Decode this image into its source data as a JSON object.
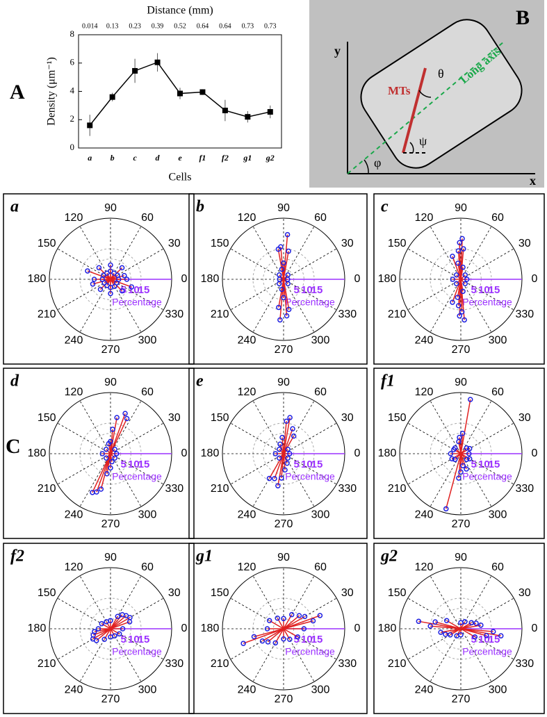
{
  "panel_labels": [
    "A",
    "B",
    "C"
  ],
  "diagram": {
    "x_axis": "x",
    "y_axis": "y",
    "mts": "MTs",
    "long_axis": "Long axis",
    "theta": "θ",
    "psi": "ψ",
    "phi": "φ"
  },
  "chart_data": [
    {
      "type": "line",
      "x_label": "Cells",
      "x2_label": "Distance (mm)",
      "y_label": "Density (μm⁻¹)",
      "categories": [
        "a",
        "b",
        "c",
        "d",
        "e",
        "f1",
        "f2",
        "g1",
        "g2"
      ],
      "x2_labels": [
        "0.014",
        "0.13",
        "0.23",
        "0.39",
        "0.52",
        "0.64",
        "0.64",
        "0.73",
        "0.73"
      ],
      "values": [
        1.6,
        3.6,
        5.45,
        6.05,
        3.85,
        3.95,
        2.65,
        2.2,
        2.55
      ],
      "errors": [
        0.75,
        0.3,
        0.85,
        0.65,
        0.4,
        0.2,
        0.75,
        0.4,
        0.45
      ],
      "color": "#000000",
      "ylim": [
        0,
        8
      ],
      "yticks": [
        0,
        2,
        4,
        6,
        8
      ]
    },
    {
      "type": "polar",
      "title": "a",
      "theta_ticks": [
        0,
        30,
        60,
        90,
        120,
        150,
        180,
        210,
        240,
        270,
        300,
        330
      ],
      "rlim": [
        0,
        30
      ],
      "rticks": [
        5,
        10,
        15
      ],
      "r_label": "Percentage",
      "color": "#1f1fe0",
      "line_color": "#e02020",
      "theta": [
        0,
        30,
        60,
        90,
        120,
        150,
        180,
        210,
        240,
        270,
        300,
        330,
        15,
        160,
        195,
        340,
        45,
        135,
        225,
        315,
        90,
        270,
        180,
        0
      ],
      "r": [
        4,
        4,
        3.5,
        4,
        3.5,
        4,
        4,
        3.5,
        3.5,
        4,
        4,
        3.5,
        7,
        12,
        9,
        11,
        8,
        8,
        7,
        8,
        7,
        7,
        8,
        8
      ]
    },
    {
      "type": "polar",
      "title": "b",
      "theta_ticks": [
        0,
        30,
        60,
        90,
        120,
        150,
        180,
        210,
        240,
        270,
        300,
        330
      ],
      "rlim": [
        0,
        30
      ],
      "rticks": [
        5,
        10,
        15
      ],
      "r_label": "Percentage",
      "color": "#1f1fe0",
      "line_color": "#e02020",
      "theta": [
        95,
        100,
        85,
        80,
        265,
        275,
        260,
        280,
        90,
        270,
        100,
        260,
        45,
        135,
        225,
        315,
        0,
        180
      ],
      "r": [
        16,
        15,
        22,
        14,
        20,
        18,
        14,
        15,
        8,
        9,
        5,
        5,
        3,
        3,
        3,
        3,
        2,
        2
      ]
    },
    {
      "type": "polar",
      "title": "c",
      "theta_ticks": [
        0,
        30,
        60,
        90,
        120,
        150,
        180,
        210,
        240,
        270,
        300,
        330
      ],
      "rlim": [
        0,
        30
      ],
      "rticks": [
        5,
        10,
        15
      ],
      "r_label": "Percentage",
      "color": "#1f1fe0",
      "line_color": "#e02020",
      "theta": [
        88,
        92,
        85,
        95,
        268,
        272,
        275,
        265,
        100,
        260,
        80,
        280,
        45,
        135,
        225,
        315,
        180,
        0,
        110,
        250
      ],
      "r": [
        20,
        18,
        15,
        14,
        18,
        16,
        20,
        13,
        8,
        9,
        6,
        6,
        3,
        3,
        3,
        3,
        4,
        3,
        12,
        12
      ]
    },
    {
      "type": "polar",
      "title": "d",
      "theta_ticks": [
        0,
        30,
        60,
        90,
        120,
        150,
        180,
        210,
        240,
        270,
        300,
        330
      ],
      "rlim": [
        0,
        30
      ],
      "rticks": [
        5,
        10,
        15
      ],
      "r_label": "Percentage",
      "color": "#1f1fe0",
      "line_color": "#e02020",
      "theta": [
        70,
        65,
        80,
        85,
        250,
        245,
        255,
        260,
        90,
        270,
        100,
        280,
        45,
        135,
        225,
        315,
        180,
        0
      ],
      "r": [
        21,
        19,
        18,
        12,
        20,
        21,
        18,
        10,
        6,
        7,
        5,
        4,
        3,
        3,
        3,
        3,
        4,
        3
      ]
    },
    {
      "type": "polar",
      "title": "e",
      "theta_ticks": [
        0,
        30,
        60,
        90,
        120,
        150,
        180,
        210,
        240,
        270,
        300,
        330
      ],
      "rlim": [
        0,
        30
      ],
      "rticks": [
        5,
        10,
        15
      ],
      "r_label": "Percentage",
      "color": "#1f1fe0",
      "line_color": "#e02020",
      "theta": [
        80,
        85,
        70,
        60,
        240,
        250,
        260,
        265,
        95,
        275,
        110,
        290,
        45,
        135,
        225,
        315,
        180,
        0
      ],
      "r": [
        18,
        16,
        13,
        10,
        14,
        13,
        16,
        12,
        8,
        8,
        5,
        5,
        3,
        3,
        3,
        3,
        4,
        3
      ]
    },
    {
      "type": "polar",
      "title": "f1",
      "theta_ticks": [
        0,
        30,
        60,
        90,
        120,
        150,
        180,
        210,
        240,
        270,
        300,
        330
      ],
      "rlim": [
        0,
        30
      ],
      "rticks": [
        5,
        10,
        15
      ],
      "r_label": "Percentage",
      "color": "#1f1fe0",
      "line_color": "#e02020",
      "theta": [
        80,
        85,
        95,
        255,
        265,
        270,
        280,
        45,
        135,
        225,
        315,
        180,
        0,
        150,
        30,
        210,
        330,
        100,
        290
      ],
      "r": [
        27,
        10,
        8,
        28,
        12,
        9,
        6,
        4,
        4,
        4,
        4,
        5,
        4,
        4,
        5,
        5,
        5,
        6,
        8
      ]
    },
    {
      "type": "polar",
      "title": "f2",
      "theta_ticks": [
        0,
        30,
        60,
        90,
        120,
        150,
        180,
        210,
        240,
        270,
        300,
        330
      ],
      "rlim": [
        0,
        30
      ],
      "rticks": [
        5,
        10,
        15
      ],
      "r_label": "Percentage",
      "color": "#1f1fe0",
      "line_color": "#e02020",
      "theta": [
        30,
        40,
        50,
        20,
        60,
        200,
        210,
        220,
        190,
        240,
        90,
        270,
        120,
        300,
        150,
        330,
        0,
        180
      ],
      "r": [
        11,
        10,
        9,
        10,
        7,
        9,
        10,
        9,
        8,
        6,
        4,
        4,
        4,
        4,
        5,
        5,
        6,
        6
      ]
    },
    {
      "type": "polar",
      "title": "g1",
      "theta_ticks": [
        0,
        30,
        60,
        90,
        120,
        150,
        180,
        210,
        240,
        270,
        300,
        330
      ],
      "rlim": [
        0,
        30
      ],
      "rticks": [
        5,
        10,
        15
      ],
      "r_label": "Percentage",
      "color": "#1f1fe0",
      "line_color": "#e02020",
      "theta": [
        20,
        30,
        15,
        40,
        200,
        210,
        195,
        220,
        90,
        270,
        120,
        300,
        150,
        330,
        0,
        180,
        60,
        240
      ],
      "r": [
        19,
        12,
        15,
        10,
        21,
        12,
        15,
        10,
        5,
        5,
        6,
        6,
        8,
        8,
        10,
        8,
        8,
        8
      ]
    },
    {
      "type": "polar",
      "title": "g2",
      "theta_ticks": [
        0,
        30,
        60,
        90,
        120,
        150,
        180,
        210,
        240,
        270,
        300,
        330
      ],
      "rlim": [
        0,
        30
      ],
      "rticks": [
        5,
        10,
        15
      ],
      "r_label": "Percentage",
      "color": "#1f1fe0",
      "line_color": "#e02020",
      "theta": [
        170,
        175,
        165,
        350,
        355,
        345,
        10,
        190,
        20,
        200,
        30,
        210,
        60,
        240,
        90,
        270,
        150,
        330
      ],
      "r": [
        21,
        15,
        13,
        20,
        16,
        13,
        10,
        10,
        8,
        8,
        6,
        6,
        4,
        4,
        3,
        3,
        8,
        8
      ]
    }
  ]
}
